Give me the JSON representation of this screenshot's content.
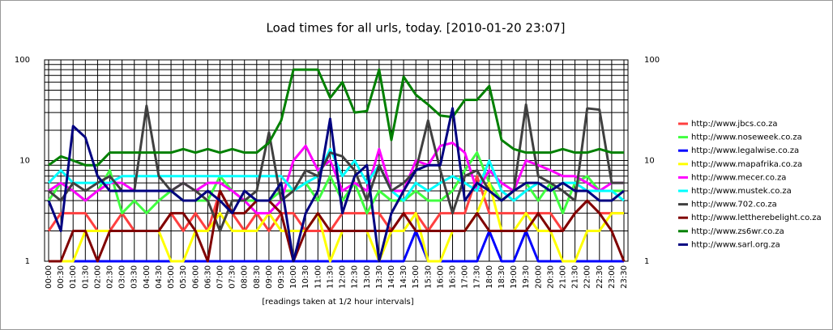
{
  "chart_data": {
    "type": "line",
    "title": "Load times for all urls, today. [2010-01-20 23:07]",
    "x_label": "[readings taken at 1/2 hour intervals]",
    "categories": [
      "00:00",
      "00:30",
      "01:00",
      "01:30",
      "02:00",
      "02:30",
      "03:00",
      "03:30",
      "04:00",
      "04:30",
      "05:00",
      "05:30",
      "06:00",
      "06:30",
      "07:00",
      "07:30",
      "08:00",
      "08:30",
      "09:00",
      "09:30",
      "10:00",
      "10:30",
      "11:00",
      "11:30",
      "12:00",
      "12:30",
      "13:00",
      "13:30",
      "14:00",
      "14:30",
      "15:00",
      "15:30",
      "16:00",
      "16:30",
      "17:00",
      "17:30",
      "18:00",
      "18:30",
      "19:00",
      "19:30",
      "20:00",
      "20:30",
      "21:00",
      "21:30",
      "22:00",
      "22:30",
      "23:00",
      "23:30"
    ],
    "ylim": [
      1,
      100
    ],
    "yticks": [
      1,
      10,
      100
    ],
    "log_scale": true,
    "grid": true,
    "legend": "right",
    "series": [
      {
        "name": "http://www.jbcs.co.za",
        "color": "#ff4040",
        "values": [
          2,
          3,
          3,
          3,
          2,
          2,
          3,
          2,
          2,
          2,
          3,
          2,
          3,
          2,
          5,
          3,
          2,
          3,
          2,
          3,
          3,
          2,
          2,
          2,
          3,
          3,
          3,
          3,
          2,
          3,
          3,
          2,
          3,
          3,
          3,
          7,
          3,
          3,
          3,
          3,
          3,
          3,
          2,
          3,
          4,
          3,
          3,
          3
        ]
      },
      {
        "name": "http://www.noseweek.co.za",
        "color": "#40ff40",
        "values": [
          4,
          6,
          5,
          4,
          5,
          8,
          3,
          4,
          3,
          4,
          5,
          4,
          4,
          4,
          7,
          5,
          4,
          4,
          4,
          5,
          5,
          6,
          4,
          7,
          4,
          6,
          3,
          5,
          4,
          4,
          5,
          4,
          4,
          5,
          8,
          12,
          6,
          4,
          5,
          6,
          4,
          6,
          3,
          6,
          7,
          5,
          5,
          5
        ]
      },
      {
        "name": "http://www.legalwise.co.za",
        "color": "#0000ff",
        "values": [
          1,
          1,
          1,
          1,
          1,
          1,
          1,
          1,
          1,
          1,
          1,
          1,
          1,
          1,
          1,
          1,
          1,
          1,
          1,
          1,
          1,
          1,
          1,
          1,
          1,
          1,
          1,
          1,
          1,
          1,
          2,
          1,
          1,
          1,
          1,
          1,
          2,
          1,
          1,
          2,
          1,
          1,
          1,
          1,
          1,
          1,
          1,
          1
        ]
      },
      {
        "name": "http://www.mapafrika.co.za",
        "color": "#ffff00",
        "values": [
          1,
          1,
          1,
          2,
          2,
          2,
          2,
          2,
          2,
          2,
          1,
          1,
          2,
          2,
          3,
          2,
          2,
          2,
          3,
          2,
          2,
          2,
          3,
          1,
          2,
          2,
          2,
          1,
          2,
          2,
          3,
          1,
          1,
          2,
          2,
          3,
          6,
          2,
          2,
          3,
          2,
          2,
          1,
          1,
          2,
          2,
          3,
          3
        ]
      },
      {
        "name": "http://www.mecer.co.za",
        "color": "#ff00ff",
        "values": [
          5,
          6,
          5,
          4,
          5,
          6,
          6,
          5,
          5,
          5,
          5,
          6,
          5,
          6,
          6,
          5,
          4,
          3,
          3,
          4,
          10,
          14,
          8,
          10,
          5,
          6,
          5,
          13,
          5,
          5,
          10,
          9,
          14,
          15,
          12,
          5,
          8,
          6,
          5,
          10,
          9,
          8,
          7,
          7,
          6,
          5,
          6,
          6
        ]
      },
      {
        "name": "http://www.mustek.co.za",
        "color": "#00ffff",
        "values": [
          6,
          8,
          6,
          6,
          6,
          6,
          7,
          7,
          7,
          7,
          7,
          7,
          7,
          7,
          7,
          7,
          7,
          7,
          7,
          7,
          5,
          6,
          7,
          13,
          7,
          10,
          6,
          9,
          5,
          4,
          6,
          5,
          6,
          7,
          6,
          5,
          10,
          5,
          4,
          5,
          6,
          5,
          6,
          6,
          5,
          5,
          5,
          4
        ]
      },
      {
        "name": "http://www.702.co.za",
        "color": "#404040",
        "values": [
          5,
          4,
          6,
          5,
          6,
          7,
          5,
          5,
          35,
          7,
          5,
          6,
          5,
          4,
          2,
          4,
          4,
          5,
          19,
          4,
          5,
          8,
          7,
          12,
          11,
          8,
          4,
          9,
          5,
          6,
          8,
          25,
          8,
          3,
          7,
          8,
          5,
          4,
          5,
          36,
          7,
          6,
          5,
          4,
          33,
          32,
          6,
          6
        ]
      },
      {
        "name": "http://www.lettherebelight.co.za",
        "color": "#800000",
        "values": [
          1,
          1,
          2,
          2,
          1,
          2,
          2,
          2,
          2,
          2,
          3,
          3,
          2,
          1,
          5,
          3,
          3,
          4,
          4,
          3,
          1,
          2,
          3,
          2,
          2,
          2,
          2,
          2,
          2,
          3,
          2,
          2,
          2,
          2,
          2,
          3,
          2,
          2,
          2,
          2,
          3,
          2,
          2,
          3,
          4,
          3,
          2,
          1
        ]
      },
      {
        "name": "http://www.zs6wr.co.za",
        "color": "#008000",
        "values": [
          9,
          11,
          10,
          9,
          9,
          12,
          12,
          12,
          12,
          12,
          12,
          13,
          12,
          13,
          12,
          13,
          12,
          12,
          15,
          25,
          80,
          80,
          80,
          42,
          60,
          30,
          31,
          80,
          16,
          68,
          45,
          36,
          28,
          27,
          40,
          40,
          55,
          16,
          13,
          12,
          12,
          12,
          13,
          12,
          12,
          13,
          12,
          12
        ]
      },
      {
        "name": "http://www.sarl.org.za",
        "color": "#000080",
        "values": [
          4,
          2,
          22,
          17,
          7,
          5,
          5,
          5,
          5,
          5,
          5,
          4,
          4,
          5,
          4,
          3,
          5,
          4,
          4,
          6,
          1,
          3,
          5,
          26,
          3,
          7,
          9,
          1,
          3,
          5,
          8,
          9,
          9,
          33,
          4,
          6,
          5,
          4,
          5,
          6,
          6,
          5,
          6,
          5,
          5,
          4,
          4,
          5
        ]
      }
    ]
  }
}
